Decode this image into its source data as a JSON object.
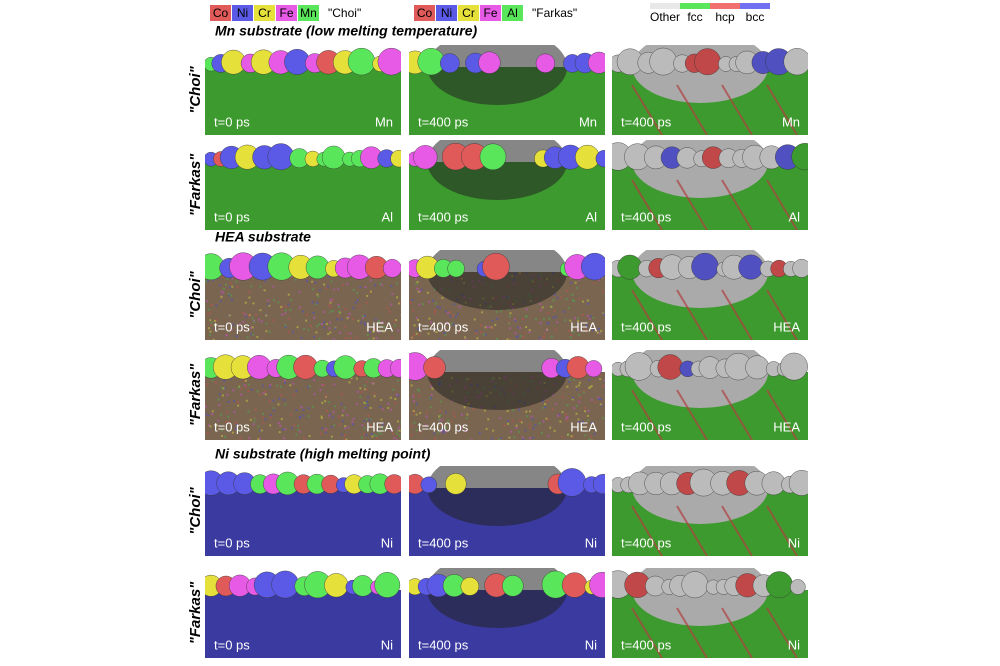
{
  "legend": {
    "choi": {
      "elements": [
        "Co",
        "Ni",
        "Cr",
        "Fe",
        "Mn"
      ],
      "label": "\"Choi\""
    },
    "farkas": {
      "elements": [
        "Co",
        "Ni",
        "Cr",
        "Fe",
        "Al"
      ],
      "label": "\"Farkas\""
    },
    "structure": [
      "Other",
      "fcc",
      "hcp",
      "bcc"
    ]
  },
  "groups": [
    {
      "title": "Mn substrate (low melting temperature)",
      "rows": [
        {
          "label": "\"Choi\"",
          "panels": [
            {
              "time": "t=0 ps",
              "material": "Mn"
            },
            {
              "time": "t=400 ps",
              "material": "Mn"
            },
            {
              "time": "t=400 ps",
              "material": "Mn"
            }
          ]
        },
        {
          "label": "\"Farkas\"",
          "panels": [
            {
              "time": "t=0 ps",
              "material": "Al"
            },
            {
              "time": "t=400 ps",
              "material": "Al"
            },
            {
              "time": "t=400 ps",
              "material": "Al"
            }
          ]
        }
      ]
    },
    {
      "title": "HEA substrate",
      "rows": [
        {
          "label": "\"Choi\"",
          "panels": [
            {
              "time": "t=0 ps",
              "material": "HEA"
            },
            {
              "time": "t=400 ps",
              "material": "HEA"
            },
            {
              "time": "t=400 ps",
              "material": "HEA"
            }
          ]
        },
        {
          "label": "\"Farkas\"",
          "panels": [
            {
              "time": "t=0 ps",
              "material": "HEA"
            },
            {
              "time": "t=400 ps",
              "material": "HEA"
            },
            {
              "time": "t=400 ps",
              "material": "HEA"
            }
          ]
        }
      ]
    },
    {
      "title": "Ni substrate (high melting point)",
      "rows": [
        {
          "label": "\"Choi\"",
          "panels": [
            {
              "time": "t=0 ps",
              "material": "Ni"
            },
            {
              "time": "t=400 ps",
              "material": "Ni"
            },
            {
              "time": "t=400 ps",
              "material": "Ni"
            }
          ]
        },
        {
          "label": "\"Farkas\"",
          "panels": [
            {
              "time": "t=0 ps",
              "material": "Ni"
            },
            {
              "time": "t=400 ps",
              "material": "Ni"
            },
            {
              "time": "t=400 ps",
              "material": "Ni"
            }
          ]
        }
      ]
    }
  ]
}
